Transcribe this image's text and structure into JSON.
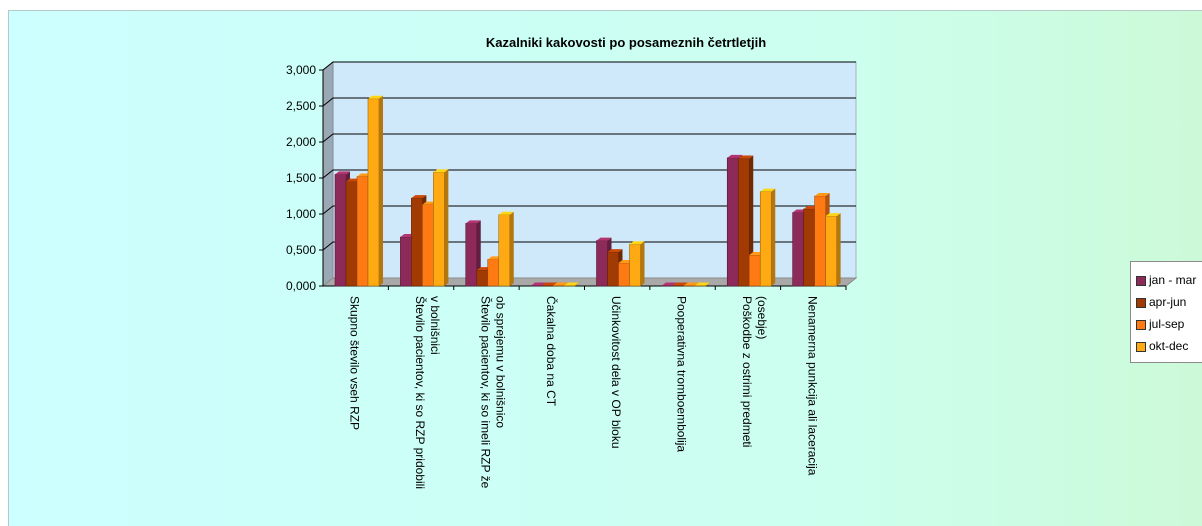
{
  "chart_data": {
    "type": "bar",
    "title": "Kazalniki kakovosti po posameznih četrtletjih",
    "categories": [
      [
        "Skupno število vseh RZP"
      ],
      [
        "Število pacientov, ki so RZP pridobili",
        "v bolnišnici"
      ],
      [
        "Število pacientov, ki so imeli RZP že",
        "ob sprejemu v bolnišnico"
      ],
      [
        "Čakalna doba na CT"
      ],
      [
        "Učinkovitost dela v OP bloku"
      ],
      [
        "Pooperativna tromboembolija"
      ],
      [
        "Poškodbe z ostrimi predmeti",
        "(osebje)"
      ],
      [
        "Nenamerna punkcija ali laceracija"
      ]
    ],
    "series": [
      {
        "name": "jan - mar",
        "color": "#8e2a5a",
        "values": [
          1.55,
          0.68,
          0.87,
          0.0,
          0.63,
          0.0,
          1.78,
          1.02
        ]
      },
      {
        "name": "apr-jun",
        "color": "#a23a04",
        "values": [
          1.45,
          1.22,
          0.22,
          0.0,
          0.47,
          0.0,
          1.77,
          1.07
        ]
      },
      {
        "name": "jul-sep",
        "color": "#ff7a12",
        "values": [
          1.52,
          1.13,
          0.37,
          0.0,
          0.32,
          0.0,
          0.43,
          1.25
        ]
      },
      {
        "name": "okt-dec",
        "color": "#ffaa12",
        "values": [
          2.6,
          1.58,
          0.99,
          0.0,
          0.58,
          0.0,
          1.31,
          0.97
        ]
      }
    ],
    "yticks": [
      "0,000",
      "0,500",
      "1,000",
      "1,500",
      "2,000",
      "2,500",
      "3,000"
    ],
    "ylim": [
      0,
      3
    ],
    "grid": true,
    "legend_position": "right"
  }
}
